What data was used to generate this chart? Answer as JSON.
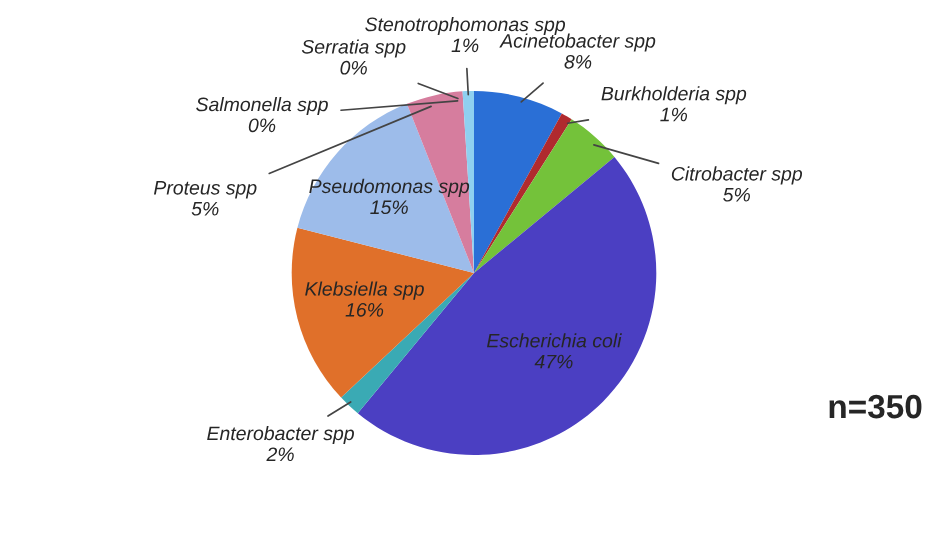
{
  "chart_data": {
    "type": "pie",
    "categories": [
      "Acinetobacter spp",
      "Burkholderia spp",
      "Citrobacter spp",
      "Escherichia coli",
      "Enterobacter spp",
      "Klebsiella spp",
      "Pseudomonas spp",
      "Proteus spp",
      "Salmonella spp",
      "Serratia spp",
      "Stenotrophomonas spp"
    ],
    "values": [
      8,
      1,
      5,
      47,
      2,
      16,
      15,
      5,
      0,
      0,
      1
    ],
    "colors": [
      "#2a6fd6",
      "#b02a2e",
      "#74c23a",
      "#4b3fc2",
      "#3aaab4",
      "#e0702a",
      "#9dbcea",
      "#d67d9e",
      "#9cc46a",
      "#e8dc6a",
      "#8fd0f0"
    ],
    "value_labels": [
      "8%",
      "1%",
      "5%",
      "47%",
      "2%",
      "16%",
      "15%",
      "5%",
      "0%",
      "0%",
      "1%"
    ],
    "annotations": [
      "n=350"
    ],
    "legend": false
  }
}
